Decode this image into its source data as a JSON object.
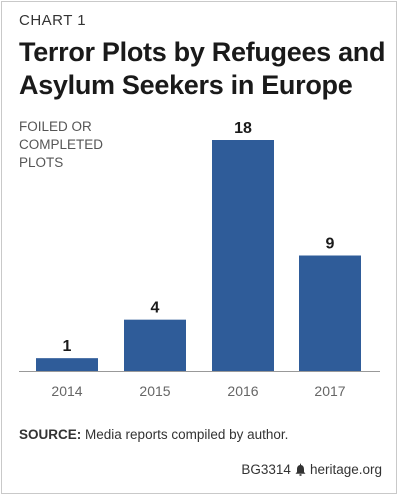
{
  "eyebrow": "CHART 1",
  "title": "Terror Plots by Refugees and Asylum Seekers in Europe",
  "source_label": "SOURCE:",
  "source_text": "Media reports compiled by author.",
  "credit_id": "BG3314",
  "credit_site": "heritage.org",
  "bar_color": "#2f5c99",
  "chart_data": {
    "type": "bar",
    "title": "Terror Plots by Refugees and Asylum Seekers in Europe",
    "ylabel": "FOILED OR\nCOMPLETED\nPLOTS",
    "xlabel": "",
    "categories": [
      "2014",
      "2015",
      "2016",
      "2017"
    ],
    "values": [
      1,
      4,
      18,
      9
    ],
    "ylim": [
      0,
      18
    ],
    "grid": false,
    "legend": "none"
  }
}
